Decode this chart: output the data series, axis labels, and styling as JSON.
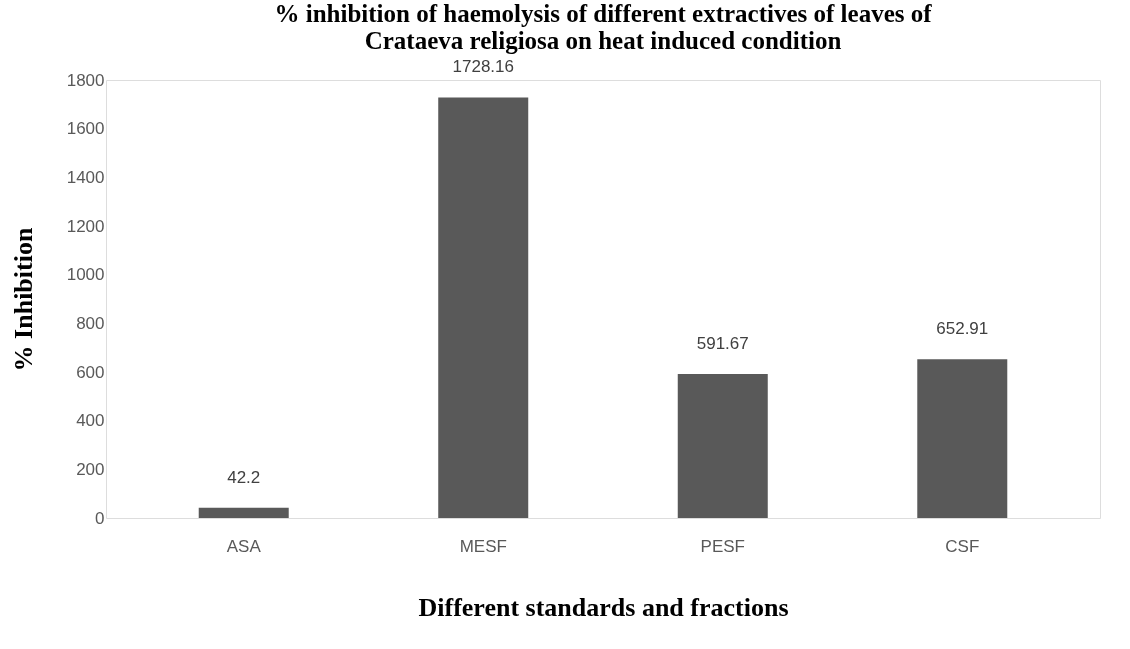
{
  "chart_data": {
    "type": "bar",
    "title": "% inhibition of haemolysis of different extractives of leaves of Crataeva religiosa on heat induced condition",
    "xlabel": "Different standards and fractions",
    "ylabel": "% Inhibition",
    "categories": [
      "ASA",
      "MESF",
      "PESF",
      "CSF"
    ],
    "values": [
      42.2,
      1728.16,
      591.67,
      652.91
    ],
    "color": "#595959",
    "ylim": [
      0,
      1800
    ],
    "yticks": [
      0,
      200,
      400,
      600,
      800,
      1000,
      1200,
      1400,
      1600,
      1800
    ],
    "data_labels": true,
    "grid": false
  }
}
